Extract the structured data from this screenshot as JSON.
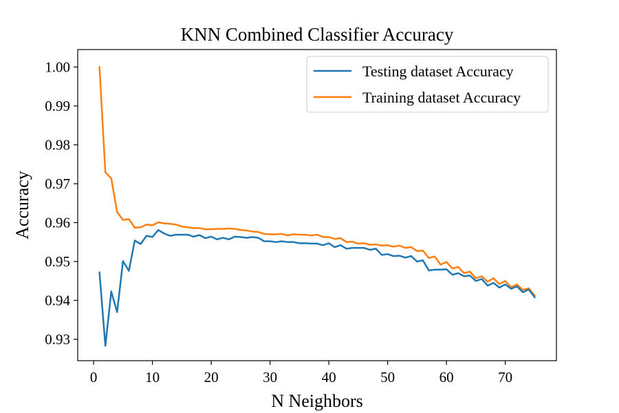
{
  "chart_data": {
    "type": "line",
    "title": "KNN Combined Classifier Accuracy",
    "xlabel": "N Neighbors",
    "ylabel": "Accuracy",
    "xlim": [
      -2.7,
      78.7
    ],
    "ylim": [
      0.9245,
      1.0045
    ],
    "xticks": [
      0,
      10,
      20,
      30,
      40,
      50,
      60,
      70
    ],
    "xtick_labels": [
      "0",
      "10",
      "20",
      "30",
      "40",
      "50",
      "60",
      "70"
    ],
    "yticks": [
      0.93,
      0.94,
      0.95,
      0.96,
      0.97,
      0.98,
      0.99,
      1.0
    ],
    "ytick_labels": [
      "0.93",
      "0.94",
      "0.95",
      "0.96",
      "0.97",
      "0.98",
      "0.99",
      "1.00"
    ],
    "grid": false,
    "legend_position": "top-right",
    "x": [
      1,
      2,
      3,
      4,
      5,
      6,
      7,
      8,
      9,
      10,
      11,
      12,
      13,
      14,
      15,
      16,
      17,
      18,
      19,
      20,
      21,
      22,
      23,
      24,
      25,
      26,
      27,
      28,
      29,
      30,
      31,
      32,
      33,
      34,
      35,
      36,
      37,
      38,
      39,
      40,
      41,
      42,
      43,
      44,
      45,
      46,
      47,
      48,
      49,
      50,
      51,
      52,
      53,
      54,
      55,
      56,
      57,
      58,
      59,
      60,
      61,
      62,
      63,
      64,
      65,
      66,
      67,
      68,
      69,
      70,
      71,
      72,
      73,
      74,
      75
    ],
    "series": [
      {
        "name": "Testing dataset Accuracy",
        "color": "#1f77b4",
        "values": [
          0.9472,
          0.9283,
          0.9423,
          0.937,
          0.9501,
          0.9476,
          0.9554,
          0.9545,
          0.9566,
          0.9563,
          0.9581,
          0.9572,
          0.9566,
          0.9569,
          0.9569,
          0.9569,
          0.9564,
          0.9568,
          0.956,
          0.9564,
          0.9557,
          0.9561,
          0.9557,
          0.9564,
          0.9563,
          0.9561,
          0.9563,
          0.9561,
          0.9552,
          0.9552,
          0.955,
          0.9552,
          0.955,
          0.955,
          0.9547,
          0.9547,
          0.9546,
          0.9546,
          0.9542,
          0.9547,
          0.9537,
          0.9542,
          0.9533,
          0.9535,
          0.9535,
          0.9535,
          0.953,
          0.9533,
          0.9517,
          0.9519,
          0.9514,
          0.9515,
          0.951,
          0.9514,
          0.95,
          0.9503,
          0.9477,
          0.9479,
          0.9479,
          0.948,
          0.9466,
          0.947,
          0.9462,
          0.9464,
          0.945,
          0.9455,
          0.9438,
          0.9445,
          0.9433,
          0.9441,
          0.943,
          0.9436,
          0.9421,
          0.9428,
          0.9408
        ]
      },
      {
        "name": "Training dataset Accuracy",
        "color": "#ff7f0e",
        "values": [
          1.0,
          0.9729,
          0.9714,
          0.9627,
          0.9607,
          0.9609,
          0.9587,
          0.9588,
          0.9595,
          0.9593,
          0.9601,
          0.9598,
          0.9597,
          0.9595,
          0.959,
          0.9588,
          0.9586,
          0.9586,
          0.9583,
          0.9583,
          0.9584,
          0.9584,
          0.9585,
          0.9584,
          0.9581,
          0.958,
          0.9577,
          0.9576,
          0.9571,
          0.957,
          0.957,
          0.9571,
          0.9567,
          0.957,
          0.9569,
          0.9569,
          0.9567,
          0.9569,
          0.9563,
          0.9563,
          0.9558,
          0.956,
          0.955,
          0.9551,
          0.9546,
          0.9547,
          0.9543,
          0.9544,
          0.9541,
          0.9542,
          0.9538,
          0.9541,
          0.9535,
          0.9537,
          0.9527,
          0.9528,
          0.9509,
          0.9513,
          0.9492,
          0.9499,
          0.9482,
          0.9486,
          0.947,
          0.9474,
          0.9457,
          0.9462,
          0.9448,
          0.9457,
          0.9442,
          0.945,
          0.9434,
          0.9441,
          0.9427,
          0.9431,
          0.9413
        ]
      }
    ]
  }
}
